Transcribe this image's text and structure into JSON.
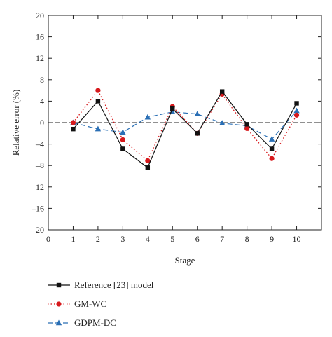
{
  "chart_data": {
    "type": "line",
    "title": "",
    "xlabel": "Stage",
    "ylabel": "Relative error (%)",
    "xlim": [
      0,
      11
    ],
    "ylim": [
      -20,
      20
    ],
    "x_ticks": [
      0,
      1,
      2,
      3,
      4,
      5,
      6,
      7,
      8,
      9,
      10
    ],
    "y_ticks": [
      -20,
      -16,
      -12,
      -8,
      -4,
      0,
      4,
      8,
      12,
      16,
      20
    ],
    "x_tick_labels": [
      "0",
      "1",
      "2",
      "3",
      "4",
      "5",
      "6",
      "7",
      "8",
      "9",
      "10"
    ],
    "y_tick_labels": [
      "–20",
      "–16",
      "–12",
      "–8",
      "–4",
      "0",
      "4",
      "8",
      "12",
      "16",
      "20"
    ],
    "reference_line": {
      "y": 0,
      "style": "dashed"
    },
    "grid": false,
    "legend_position": "below",
    "x": [
      1,
      2,
      3,
      4,
      5,
      6,
      7,
      8,
      9,
      10
    ],
    "series": [
      {
        "name": "Reference [23] model",
        "values": [
          -1.2,
          4.0,
          -4.9,
          -8.4,
          2.6,
          -2.0,
          5.8,
          -0.3,
          -4.9,
          3.6
        ],
        "color": "#111111",
        "line": "solid",
        "marker": "square"
      },
      {
        "name": "GM-WC",
        "values": [
          0.0,
          6.0,
          -3.2,
          -7.1,
          3.0,
          -2.0,
          5.3,
          -1.1,
          -6.7,
          1.4
        ],
        "color": "#d7191c",
        "line": "dotted",
        "marker": "circle"
      },
      {
        "name": "GDPM-DC",
        "values": [
          0.0,
          -1.2,
          -1.8,
          1.0,
          2.0,
          1.6,
          -0.1,
          -0.6,
          -3.1,
          2.2
        ],
        "color": "#2a6fb5",
        "line": "dashed",
        "marker": "triangle"
      }
    ]
  }
}
